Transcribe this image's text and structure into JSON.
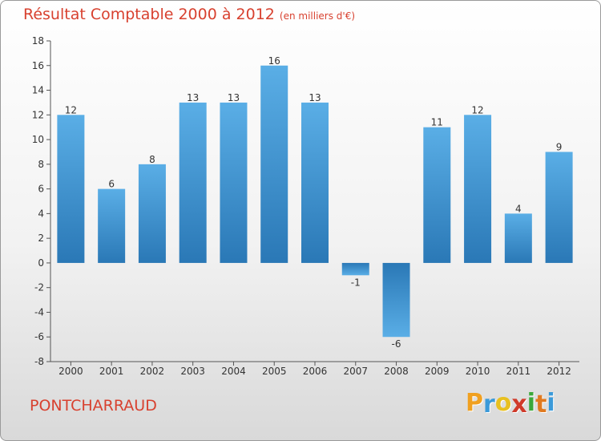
{
  "chart_data": {
    "type": "bar",
    "title": "Résultat Comptable 2000 à 2012",
    "subtitle": "(en milliers d'€)",
    "categories": [
      "2000",
      "2001",
      "2002",
      "2003",
      "2004",
      "2005",
      "2006",
      "2007",
      "2008",
      "2009",
      "2010",
      "2011",
      "2012"
    ],
    "values": [
      12,
      6,
      8,
      13,
      13,
      16,
      13,
      -1,
      -6,
      11,
      12,
      4,
      9
    ],
    "ylim": [
      -8,
      18
    ],
    "yticks": [
      -8,
      -6,
      -4,
      -2,
      0,
      2,
      4,
      6,
      8,
      10,
      12,
      14,
      16,
      18
    ],
    "xlabel": "",
    "ylabel": "",
    "grid": false,
    "bar_color_top": "#5aaee6",
    "bar_color_bottom": "#2a78b6"
  },
  "commune": "PONTCHARRAUD",
  "logo": {
    "letters": [
      "P",
      "r",
      "o",
      "x",
      "i",
      "t",
      "i"
    ],
    "colors": [
      "#f0a020",
      "#3b9ad9",
      "#e8c020",
      "#d03a2a",
      "#3aa83a",
      "#e07a20",
      "#3b9ad9"
    ]
  },
  "accent_color": "#d8412f"
}
